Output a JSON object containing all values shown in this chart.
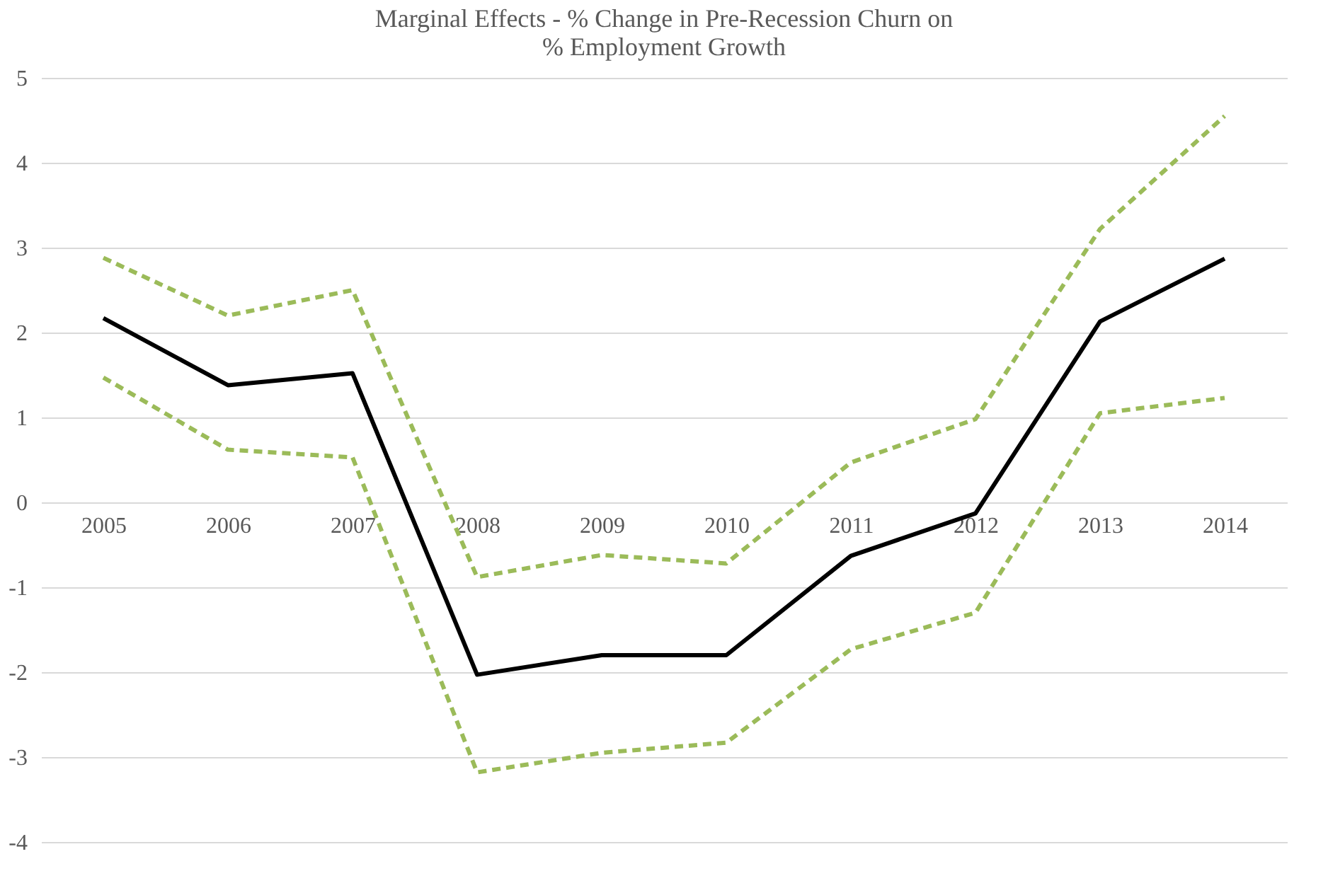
{
  "chart_data": {
    "type": "line",
    "title": [
      "Marginal Effects - % Change in Pre-Recession Churn on",
      "% Employment Growth"
    ],
    "categories": [
      "2005",
      "2006",
      "2007",
      "2008",
      "2009",
      "2010",
      "2011",
      "2012",
      "2013",
      "2014"
    ],
    "series": [
      {
        "color": "#9bbb59",
        "line_style": "dashed",
        "values": [
          2.88,
          2.2,
          2.5,
          -0.88,
          -0.62,
          -0.72,
          0.47,
          0.98,
          3.22,
          4.55
        ]
      },
      {
        "color": "#9bbb59",
        "line_style": "dashed",
        "values": [
          1.47,
          0.62,
          0.53,
          -3.18,
          -2.95,
          -2.83,
          -1.73,
          -1.3,
          1.05,
          1.23
        ]
      },
      {
        "color": "#000000",
        "line_style": "solid",
        "values": [
          2.17,
          1.38,
          1.52,
          -2.03,
          -1.8,
          -1.8,
          -0.63,
          -0.13,
          2.13,
          2.87
        ]
      }
    ],
    "ylim": [
      -4,
      5
    ],
    "yticks": [
      -4,
      -3,
      -2,
      -1,
      0,
      1,
      2,
      3,
      4,
      5
    ],
    "grid": "y",
    "marker": "none"
  }
}
